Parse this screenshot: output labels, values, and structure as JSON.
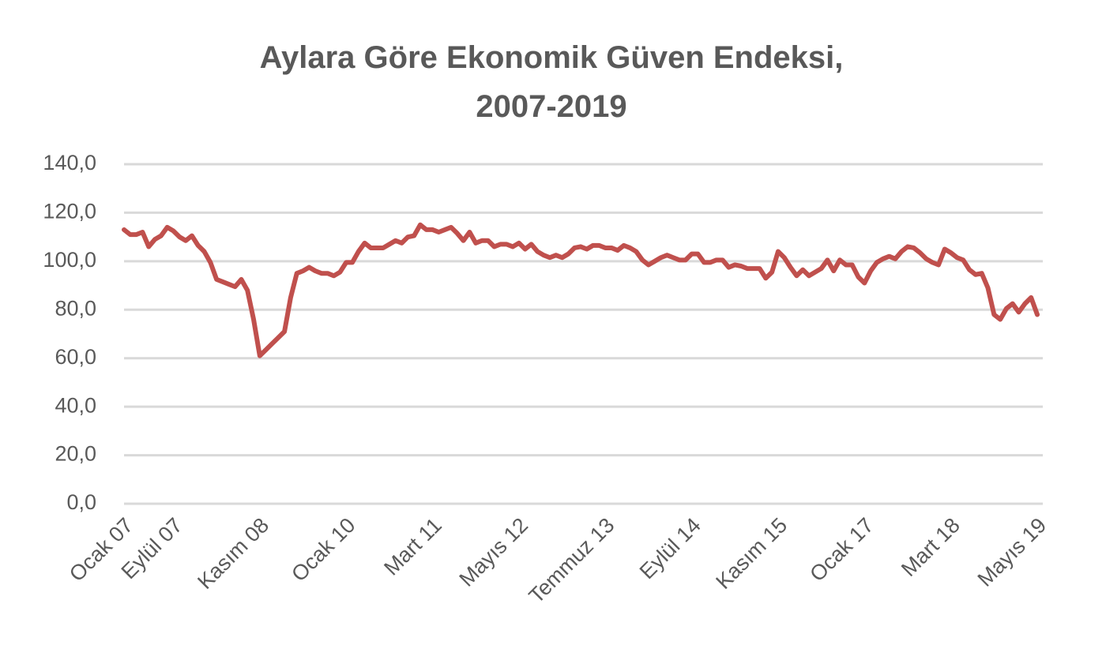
{
  "chart_data": {
    "type": "line",
    "title": [
      "Aylara Göre Ekonomik Güven Endeksi,",
      "2007-2019"
    ],
    "categories": [
      "Ocak 07",
      null,
      null,
      null,
      null,
      null,
      null,
      null,
      "Eylül 07",
      null,
      null,
      null,
      null,
      null,
      null,
      null,
      null,
      null,
      null,
      null,
      null,
      null,
      "Kasım 08",
      null,
      null,
      null,
      null,
      null,
      null,
      null,
      null,
      null,
      null,
      null,
      null,
      null,
      "Ocak 10",
      null,
      null,
      null,
      null,
      null,
      null,
      null,
      null,
      null,
      null,
      null,
      null,
      null,
      "Mart 11",
      null,
      null,
      null,
      null,
      null,
      null,
      null,
      null,
      null,
      null,
      null,
      null,
      null,
      "Mayıs 12",
      null,
      null,
      null,
      null,
      null,
      null,
      null,
      null,
      null,
      null,
      null,
      null,
      null,
      "Temmuz 13",
      null,
      null,
      null,
      null,
      null,
      null,
      null,
      null,
      null,
      null,
      null,
      null,
      null,
      "Eylül 14",
      null,
      null,
      null,
      null,
      null,
      null,
      null,
      null,
      null,
      null,
      null,
      null,
      null,
      "Kasım 15",
      null,
      null,
      null,
      null,
      null,
      null,
      null,
      null,
      null,
      null,
      null,
      null,
      null,
      "Ocak 17",
      null,
      null,
      null,
      null,
      null,
      null,
      null,
      null,
      null,
      null,
      null,
      null,
      null,
      "Mart 18",
      null,
      null,
      null,
      null,
      null,
      null,
      null,
      null,
      null,
      null,
      null,
      null,
      null,
      "Mayıs 19"
    ],
    "values": [
      113,
      111,
      111,
      112,
      106,
      109,
      110.5,
      114,
      112.5,
      110,
      108.5,
      110.5,
      106.5,
      104,
      99.5,
      92.5,
      91.5,
      90.5,
      89.5,
      92.5,
      88,
      76,
      61,
      63.5,
      66,
      68.5,
      71,
      85,
      95,
      96,
      97.5,
      96,
      95,
      95,
      94,
      95.5,
      99.5,
      99.5,
      104,
      107.5,
      105.5,
      105.5,
      105.5,
      107,
      108.5,
      107.5,
      110,
      110.5,
      115,
      113,
      113,
      112,
      113,
      114,
      111.5,
      108.5,
      112,
      107.5,
      108.5,
      108.5,
      106,
      107,
      107,
      106,
      107.5,
      105,
      107,
      104,
      102.5,
      101.5,
      102.5,
      101.5,
      103,
      105.5,
      106,
      105,
      106.5,
      106.5,
      105.5,
      105.5,
      104.5,
      106.5,
      105.5,
      104,
      100.5,
      98.5,
      100,
      101.5,
      102.5,
      101.5,
      100.5,
      100.5,
      103,
      103,
      99.5,
      99.5,
      100.5,
      100.5,
      97.5,
      98.5,
      98,
      97,
      97,
      97,
      93,
      95.5,
      104,
      101.5,
      97.5,
      94,
      96.5,
      94,
      95.5,
      97,
      100.5,
      96,
      100.5,
      98.5,
      98.5,
      93.5,
      91,
      96,
      99.5,
      101,
      102,
      101,
      104,
      106,
      105.5,
      103.5,
      101,
      99.5,
      98.5,
      105,
      103.5,
      101.5,
      100.5,
      96.5,
      94.5,
      95,
      89,
      78,
      76,
      80.5,
      82.5,
      79,
      82.5,
      85,
      78
    ],
    "color": "#c0504d",
    "ylim": [
      0,
      140
    ],
    "yticks": [
      {
        "value": 0,
        "label": "0,0"
      },
      {
        "value": 20,
        "label": "20,0"
      },
      {
        "value": 40,
        "label": "40,0"
      },
      {
        "value": 60,
        "label": "60,0"
      },
      {
        "value": 80,
        "label": "80,0"
      },
      {
        "value": 100,
        "label": "100,0"
      },
      {
        "value": 120,
        "label": "120,0"
      },
      {
        "value": 140,
        "label": "140,0"
      }
    ],
    "grid": true
  }
}
